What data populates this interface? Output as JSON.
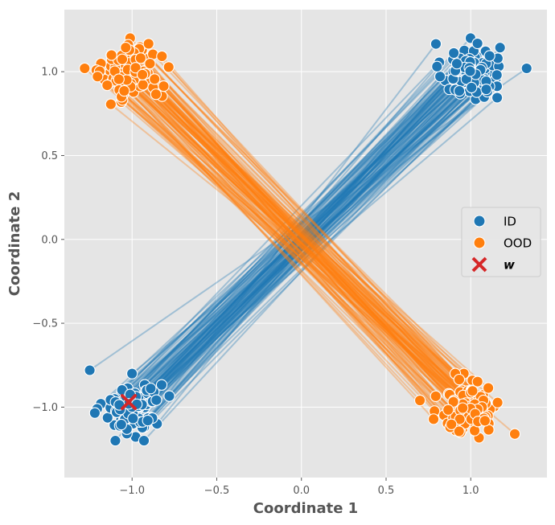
{
  "chart_data": {
    "type": "scatter",
    "xlabel": "Coordinate 1",
    "ylabel": "Coordinate 2",
    "xlim": [
      -1.4,
      1.45
    ],
    "ylim": [
      -1.42,
      1.37
    ],
    "xticks": [
      -1.0,
      -0.5,
      0.0,
      0.5,
      1.0
    ],
    "xtick_labels": [
      "−1.0",
      "−0.5",
      "0.0",
      "0.5",
      "1.0"
    ],
    "yticks": [
      -1.0,
      -0.5,
      0.0,
      0.5,
      1.0
    ],
    "ytick_labels": [
      "−1.0",
      "−0.5",
      "0.0",
      "0.5",
      "1.0"
    ],
    "grid": true,
    "legend_position": "center-right",
    "series": [
      {
        "name": "ID",
        "color": "#1f77b4",
        "marker": "circle",
        "pairs_connected_by_lines": true,
        "cluster_centers": [
          [
            1.0,
            1.0
          ],
          [
            -1.0,
            -1.0
          ]
        ],
        "cluster_spread": 0.1,
        "points_per_cluster": 100,
        "notable_points": [
          [
            1.33,
            1.02
          ],
          [
            -1.25,
            -0.78
          ]
        ]
      },
      {
        "name": "OOD",
        "color": "#ff7f0e",
        "marker": "circle",
        "pairs_connected_by_lines": true,
        "cluster_centers": [
          [
            -1.0,
            1.0
          ],
          [
            1.0,
            -1.0
          ]
        ],
        "cluster_spread": 0.1,
        "points_per_cluster": 100,
        "notable_points": [
          [
            -1.28,
            1.02
          ],
          [
            1.26,
            -1.16
          ],
          [
            0.7,
            -0.96
          ]
        ]
      }
    ],
    "marker_w": {
      "name": "w",
      "label": "w",
      "x": -1.02,
      "y": -0.97,
      "color": "#d62728",
      "marker": "x"
    },
    "legend": [
      {
        "label": "ID",
        "color": "#1f77b4",
        "marker": "circle"
      },
      {
        "label": "OOD",
        "color": "#ff7f0e",
        "marker": "circle"
      },
      {
        "label": "w",
        "color": "#d62728",
        "marker": "x"
      }
    ]
  }
}
